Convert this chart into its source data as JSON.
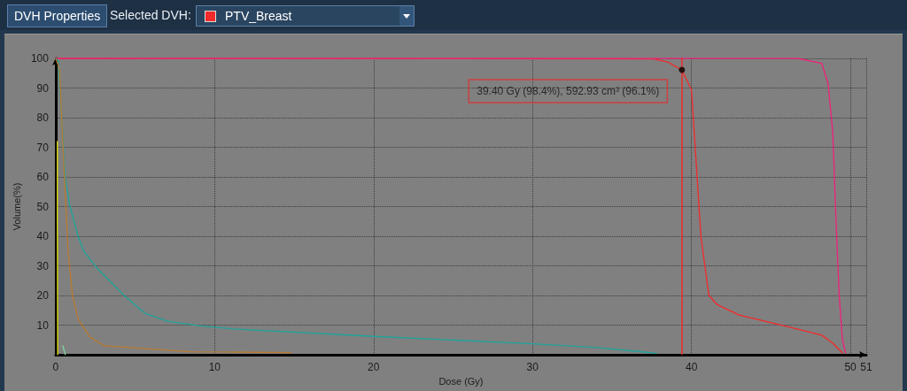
{
  "chart_data": {
    "type": "line",
    "xlabel": "Dose (Gy)",
    "ylabel": "Volume(%)",
    "xlim": [
      0,
      51
    ],
    "xticks": [
      0,
      10,
      20,
      30,
      40,
      50,
      51
    ],
    "ylim": [
      0,
      100
    ],
    "yticks": [
      10,
      20,
      30,
      40,
      50,
      60,
      70,
      80,
      90,
      100
    ],
    "grid": true,
    "legend": "top left",
    "series": [
      {
        "name": "PTV_Breast",
        "color": "#f22a2a",
        "x": [
          0,
          37.6,
          38.5,
          39.4,
          40,
          40.3,
          40.6,
          41.1,
          41.6,
          43,
          45.8,
          48.2,
          48.9,
          49.5
        ],
        "values": [
          100,
          99.8,
          98.8,
          96.1,
          89.4,
          64.7,
          39.6,
          20,
          17,
          13.4,
          9.8,
          6.6,
          3.9,
          0.6
        ]
      },
      {
        "color": "#f0207a",
        "x": [
          0,
          46.7,
          48.2,
          48.6,
          48.9,
          49.1,
          49.3,
          49.5,
          49.7
        ],
        "values": [
          100,
          100,
          98.3,
          91.5,
          74.5,
          44.7,
          20,
          5,
          0.6
        ]
      },
      {
        "color": "#1ea39a",
        "x": [
          0,
          0.15,
          0.33,
          0.6,
          0.87,
          1.42,
          1.78,
          2.5,
          3.42,
          4.3,
          5.6,
          7.05,
          8.9,
          11.2,
          20,
          30,
          33.8,
          36.5,
          37.8
        ],
        "values": [
          100,
          99.3,
          84.4,
          59.6,
          50.7,
          39.7,
          34.8,
          29.8,
          24.8,
          20,
          14,
          11.3,
          9.9,
          8.7,
          6.2,
          3.7,
          2.5,
          1.2,
          0.5
        ]
      },
      {
        "color": "#b87a30",
        "x": [
          0,
          0.24,
          0.42,
          0.6,
          0.78,
          1.05,
          1.42,
          2.15,
          3.05,
          5.8,
          8.5,
          11.2,
          14.8
        ],
        "values": [
          100,
          96.3,
          74.5,
          54.6,
          34.8,
          20,
          11.9,
          6,
          3,
          2,
          1,
          0.9,
          0.7
        ]
      },
      {
        "color": "#e8e000",
        "x": [
          0.1,
          0.1,
          0.12
        ],
        "values": [
          72,
          45,
          0
        ]
      },
      {
        "color": "#7fd4a0",
        "x": [
          0.45,
          0.6
        ],
        "values": [
          3,
          0
        ]
      }
    ],
    "ref_lines": [
      {
        "axis": "x",
        "value": 39.4,
        "color": "#f22a2a"
      }
    ],
    "annotations": [
      "DVH Properties",
      "Selected DVH:",
      {
        "text": "39.40 Gy (98.4%), 592.93 cm³ (96.1%)",
        "x": 39.4,
        "y": 96.1
      }
    ]
  }
}
